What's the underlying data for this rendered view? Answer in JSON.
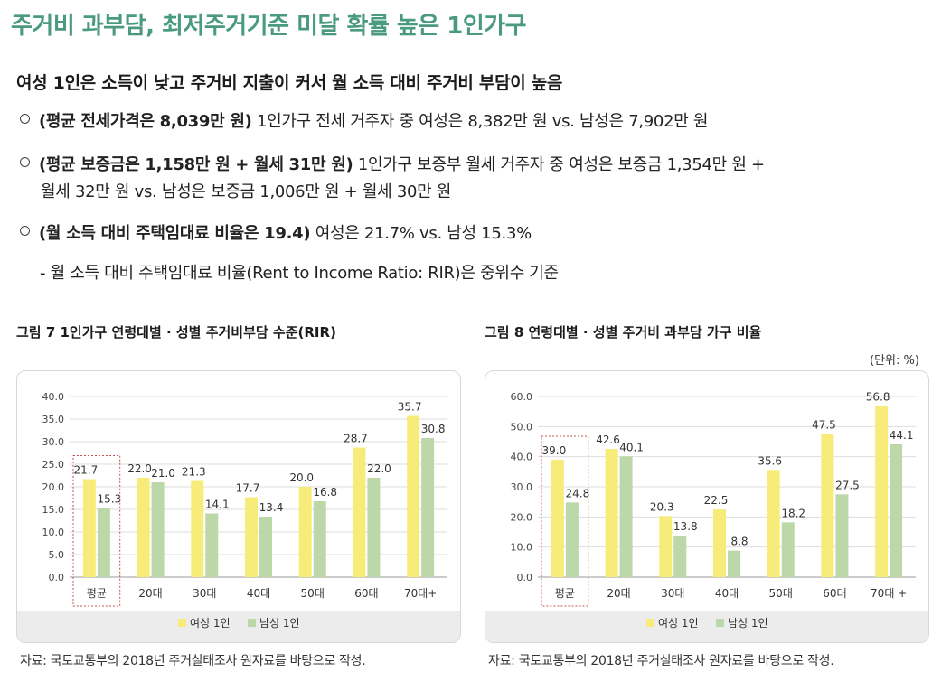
{
  "header": {
    "title": "주거비 과부담, 최저주거기준 미달 확률 높은 1인가구",
    "subtitle": "여성 1인은 소득이 낮고 주거비 지출이 커서 월 소득 대비 주거비 부담이 높음"
  },
  "bullets": [
    {
      "bold": "(평균 전세가격은 8,039만 원)",
      "lines": [
        " 1인가구 전세 거주자 중 여성은 8,382만 원 vs. 남성은 7,902만 원"
      ]
    },
    {
      "bold": "(평균 보증금은 1,158만 원 + 월세 31만 원)",
      "lines": [
        " 1인가구 보증부 월세 거주자 중 여성은 보증금 1,354만 원 +",
        "월세 32만 원 vs. 남성은 보증금 1,006만 원 + 월세 30만 원"
      ]
    },
    {
      "bold": "(월 소득 대비 주택임대료 비율은 19.4)",
      "lines": [
        " 여성은 21.7% vs. 남성 15.3%"
      ]
    }
  ],
  "sub_note": "- 월 소득 대비 주택임대료 비율(Rent to Income Ratio: RIR)은 중위수 기준",
  "figures": {
    "fig7_title": "그림 7  1인가구 연령대별 · 성별 주거비부담 수준(RIR)",
    "fig8_title": "그림 8  연령대별 · 성별 주거비 과부담 가구 비율",
    "unit": "(단위: %)",
    "source": "자료: 국토교통부의 2018년 주거실태조사 원자료를 바탕으로 작성."
  },
  "colors": {
    "title_green": "#4a9a82",
    "female_bar": "#f7ec7a",
    "male_bar": "#bcd7a8",
    "highlight_box": "#c0504d"
  },
  "chart_data": [
    {
      "type": "bar",
      "categories": [
        "평균",
        "20대",
        "30대",
        "40대",
        "50대",
        "60대",
        "70대+"
      ],
      "series": [
        {
          "name": "여성 1인",
          "values": [
            21.7,
            22.0,
            21.3,
            17.7,
            20.0,
            28.7,
            35.7
          ]
        },
        {
          "name": "남성 1인",
          "values": [
            15.3,
            21.0,
            14.1,
            13.4,
            16.8,
            22.0,
            30.8
          ]
        }
      ],
      "value_labels": {
        "female": [
          "21.7",
          "22.0",
          "21.3",
          "17.7",
          "20.0",
          "28.7",
          "35.7"
        ],
        "male": [
          "15.3",
          "21.0",
          "14.1",
          "13.4",
          "16.8",
          "22.0",
          "30.8"
        ]
      },
      "ylim": [
        0,
        40
      ],
      "yticks": [
        0,
        5,
        10,
        15,
        20,
        25,
        30,
        35,
        40
      ],
      "ytick_labels": [
        "0.0",
        "5.0",
        "10.0",
        "15.0",
        "20.0",
        "25.0",
        "30.0",
        "35.0",
        "40.0"
      ],
      "grid": true,
      "legend": "bottom",
      "highlight_category": "평균"
    },
    {
      "type": "bar",
      "categories": [
        "평균",
        "20대",
        "30대",
        "40대",
        "50대",
        "60대",
        "70대 +"
      ],
      "series": [
        {
          "name": "여성 1인",
          "values": [
            39.0,
            42.6,
            20.3,
            22.5,
            35.6,
            47.5,
            56.8
          ]
        },
        {
          "name": "남성 1인",
          "values": [
            24.8,
            40.1,
            13.8,
            8.8,
            18.2,
            27.5,
            44.1
          ]
        }
      ],
      "value_labels": {
        "female": [
          "39.0",
          "42.6",
          "20.3",
          "22.5",
          "35.6",
          "47.5",
          "56.8"
        ],
        "male": [
          "24.8",
          "40.1",
          "13.8",
          "8.8",
          "18.2",
          "27.5",
          "44.1"
        ]
      },
      "ylim": [
        0,
        60
      ],
      "yticks": [
        0,
        10,
        20,
        30,
        40,
        50,
        60
      ],
      "ytick_labels": [
        "0.0",
        "10.0",
        "20.0",
        "30.0",
        "40.0",
        "50.0",
        "60.0"
      ],
      "grid": true,
      "legend": "bottom",
      "highlight_category": "평균"
    }
  ]
}
